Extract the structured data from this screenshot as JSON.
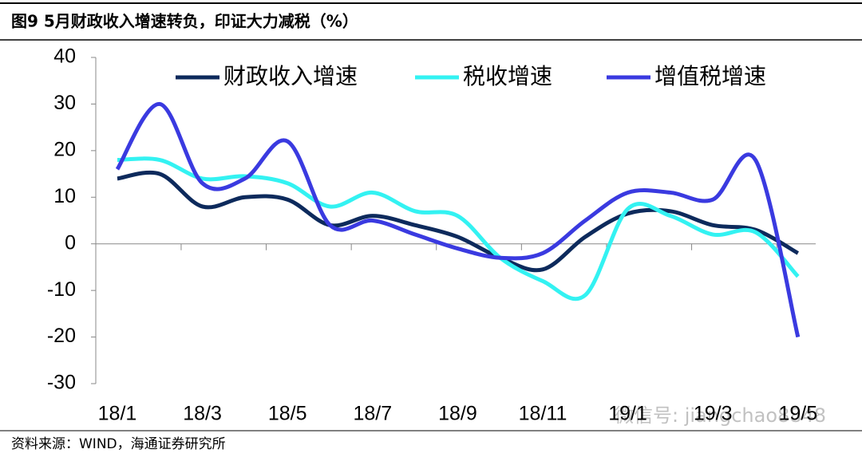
{
  "chart_data": {
    "type": "line",
    "title": "图9  5月财政收入增速转负，印证大力减税（%）",
    "source": "资料来源：WIND，海通证券研究所",
    "watermark": "微信号: jiangchao8848",
    "categories": [
      "18/1",
      null,
      "18/3",
      null,
      "18/5",
      null,
      "18/7",
      null,
      "18/9",
      null,
      "18/11",
      null,
      "19/1",
      null,
      "19/3",
      null,
      "19/5"
    ],
    "series": [
      {
        "name": "财政收入增速",
        "color": "#0d2a5c",
        "values": [
          14,
          15,
          8,
          10,
          9.5,
          4,
          6,
          4,
          1.5,
          -3,
          -5.5,
          1.5,
          6.5,
          7,
          4,
          3,
          -2
        ]
      },
      {
        "name": "税收增速",
        "color": "#33f2f2",
        "values": [
          18,
          18,
          14,
          14.5,
          13,
          8,
          11,
          7,
          6,
          -3,
          -8,
          -11,
          7.5,
          6,
          2,
          2.5,
          -7
        ]
      },
      {
        "name": "增值税增速",
        "color": "#3a3ae0",
        "values": [
          16,
          30,
          13,
          14,
          22,
          4,
          5,
          2,
          -1,
          -3,
          -2,
          5,
          11,
          11,
          9.5,
          18,
          -20
        ]
      }
    ],
    "ylim": [
      -30,
      40
    ],
    "yticks": [
      -30,
      -20,
      -10,
      0,
      10,
      20,
      30,
      40
    ],
    "legend": "top"
  }
}
